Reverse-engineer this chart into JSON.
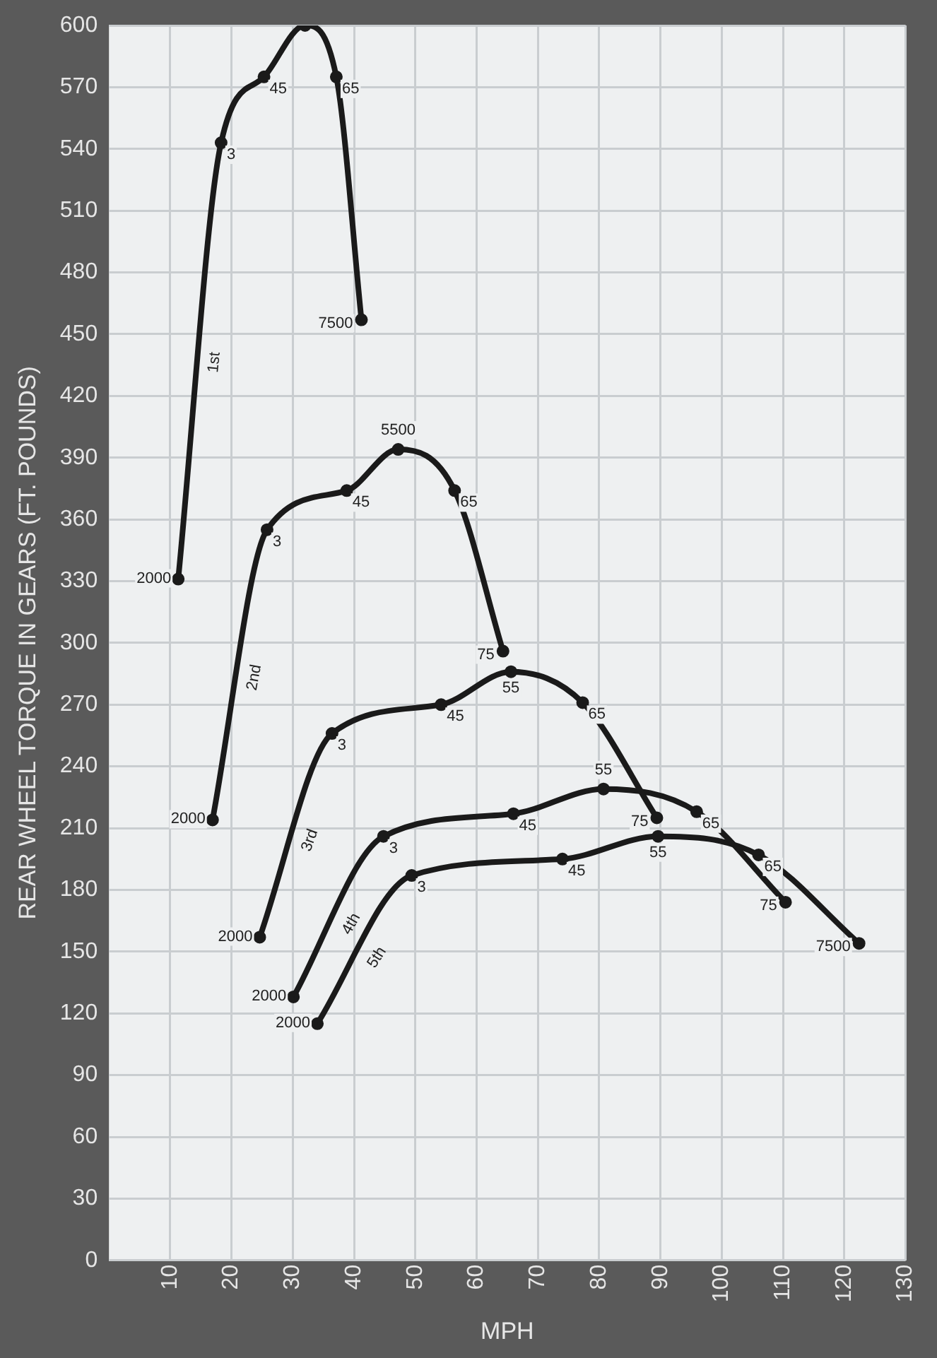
{
  "chart_data": {
    "type": "line",
    "xlabel": "MPH",
    "ylabel": "REAR WHEEL TORQUE IN GEARS (FT. POUNDS)",
    "xlim": [
      0,
      130
    ],
    "xticks": [
      10,
      20,
      30,
      40,
      50,
      60,
      70,
      80,
      90,
      100,
      110,
      120,
      130
    ],
    "ylim": [
      0,
      600
    ],
    "yticks": [
      0,
      30,
      60,
      90,
      120,
      150,
      180,
      210,
      240,
      270,
      300,
      330,
      360,
      390,
      420,
      450,
      480,
      510,
      540,
      570,
      600
    ],
    "grid": true,
    "legend": false,
    "marker": "circle",
    "line_style": "solid",
    "series": [
      {
        "name": "1st",
        "color": "#1a1a1a",
        "x": [
          11.3,
          18.3,
          25.3,
          32,
          37.1,
          41.2
        ],
        "values": [
          331,
          543,
          575,
          600,
          575,
          457
        ]
      },
      {
        "name": "2nd",
        "color": "#1a1a1a",
        "x": [
          16.9,
          25.8,
          38.8,
          47.2,
          56.4,
          64.3
        ],
        "values": [
          214,
          355,
          374,
          394,
          374,
          296
        ]
      },
      {
        "name": "3rd",
        "color": "#1a1a1a",
        "x": [
          24.6,
          36.4,
          54.2,
          65.6,
          77.3,
          89.4
        ],
        "values": [
          157,
          256,
          270,
          286,
          271,
          215
        ]
      },
      {
        "name": "4th",
        "color": "#1a1a1a",
        "x": [
          30.1,
          44.8,
          66,
          80.7,
          95.9,
          110.4
        ],
        "values": [
          128,
          206,
          217,
          229,
          218,
          174
        ]
      },
      {
        "name": "5th",
        "color": "#1a1a1a",
        "x": [
          34,
          49.4,
          74,
          89.6,
          106,
          122.4
        ],
        "values": [
          115,
          187,
          195,
          206,
          197,
          154
        ]
      }
    ],
    "annotations": [
      {
        "text": "2000",
        "x": 11.3,
        "y": 331
      },
      {
        "text": "3",
        "x": 18.3,
        "y": 543
      },
      {
        "text": "45",
        "x": 25.3,
        "y": 575
      },
      {
        "text": "65",
        "x": 37.1,
        "y": 575
      },
      {
        "text": "7500",
        "x": 41.2,
        "y": 457
      },
      {
        "text": "2000",
        "x": 16.9,
        "y": 214
      },
      {
        "text": "3",
        "x": 25.8,
        "y": 355
      },
      {
        "text": "45",
        "x": 38.8,
        "y": 374
      },
      {
        "text": "5500",
        "x": 47.2,
        "y": 394
      },
      {
        "text": "65",
        "x": 56.4,
        "y": 374
      },
      {
        "text": "75",
        "x": 64.3,
        "y": 296
      },
      {
        "text": "2000",
        "x": 24.6,
        "y": 157
      },
      {
        "text": "3",
        "x": 36.4,
        "y": 256
      },
      {
        "text": "45",
        "x": 54.2,
        "y": 270
      },
      {
        "text": "55",
        "x": 65.6,
        "y": 286
      },
      {
        "text": "65",
        "x": 77.3,
        "y": 271
      },
      {
        "text": "75",
        "x": 89.4,
        "y": 215
      },
      {
        "text": "2000",
        "x": 30.1,
        "y": 128
      },
      {
        "text": "3",
        "x": 44.8,
        "y": 206
      },
      {
        "text": "45",
        "x": 66,
        "y": 217
      },
      {
        "text": "55",
        "x": 80.7,
        "y": 229
      },
      {
        "text": "65",
        "x": 95.9,
        "y": 218
      },
      {
        "text": "75",
        "x": 110.4,
        "y": 174
      },
      {
        "text": "2000",
        "x": 34,
        "y": 115
      },
      {
        "text": "3",
        "x": 49.4,
        "y": 187
      },
      {
        "text": "45",
        "x": 74,
        "y": 195
      },
      {
        "text": "55",
        "x": 89.6,
        "y": 206
      },
      {
        "text": "65",
        "x": 106,
        "y": 197
      },
      {
        "text": "7500",
        "x": 122.4,
        "y": 154
      }
    ]
  }
}
